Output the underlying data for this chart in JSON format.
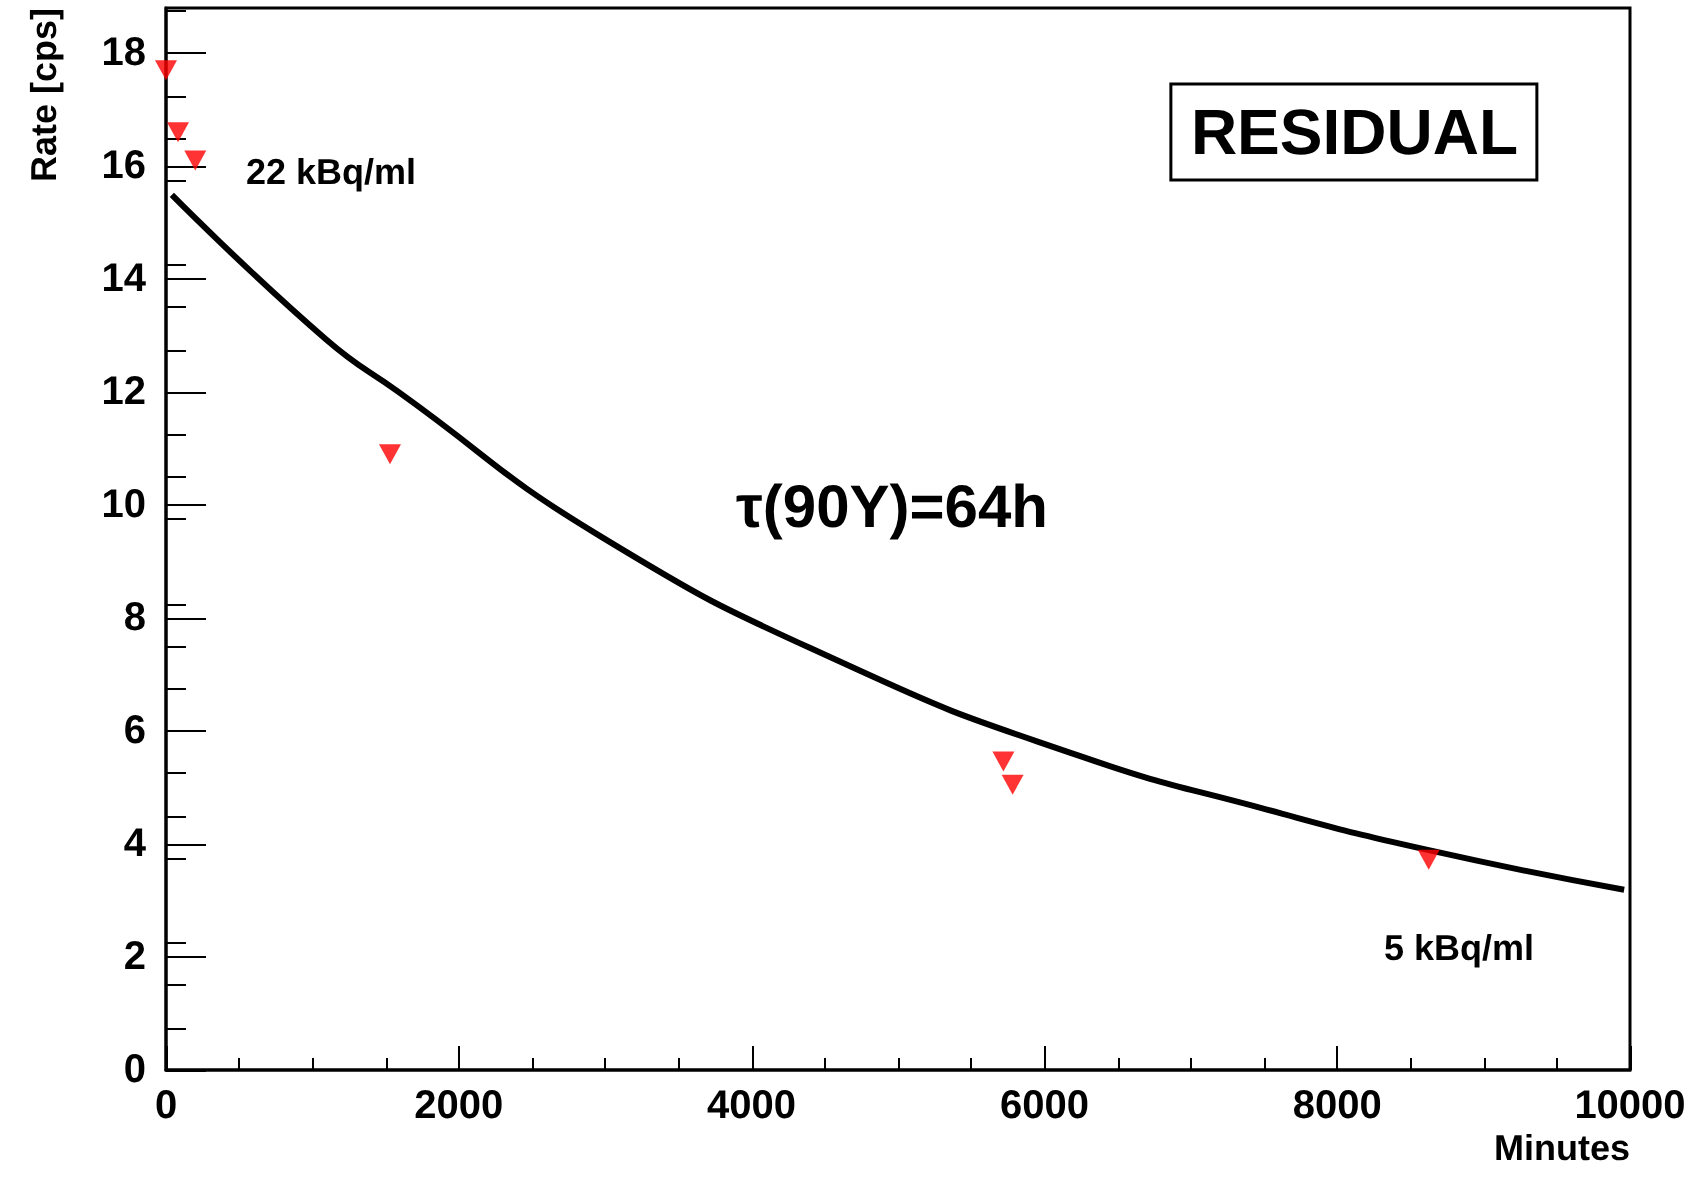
{
  "chart_data": {
    "type": "scatter",
    "title": "RESIDUAL",
    "xlabel": "Minutes",
    "ylabel": "Rate [cps]",
    "annotations": [
      "22 kBq/ml",
      "τ(90Y)=64h",
      "5 kBq/ml"
    ],
    "series": [
      {
        "color": "#ff0000",
        "marker": "triangle",
        "x": [
          0,
          82,
          200,
          1530,
          5720,
          5783,
          8625
        ],
        "values": [
          17.7,
          16.6,
          16.1,
          10.9,
          5.46,
          5.05,
          3.72
        ]
      },
      {
        "type": "line",
        "color": "#000000",
        "marker": "none",
        "x": [
          40,
          1090,
          1590,
          2960,
          4670,
          6240,
          7520,
          8610,
          9960
        ],
        "values": [
          15.49,
          12.94,
          12.0,
          9.46,
          7.15,
          5.56,
          4.61,
          3.9,
          3.19
        ]
      }
    ],
    "xlim": [
      0,
      10000
    ],
    "xticks": [
      0,
      2000,
      4000,
      6000,
      8000,
      10000
    ],
    "ylim": [
      0,
      18.8
    ],
    "yticks": [
      0,
      2,
      4,
      6,
      8,
      10,
      12,
      14,
      16,
      18
    ],
    "grid": false
  }
}
